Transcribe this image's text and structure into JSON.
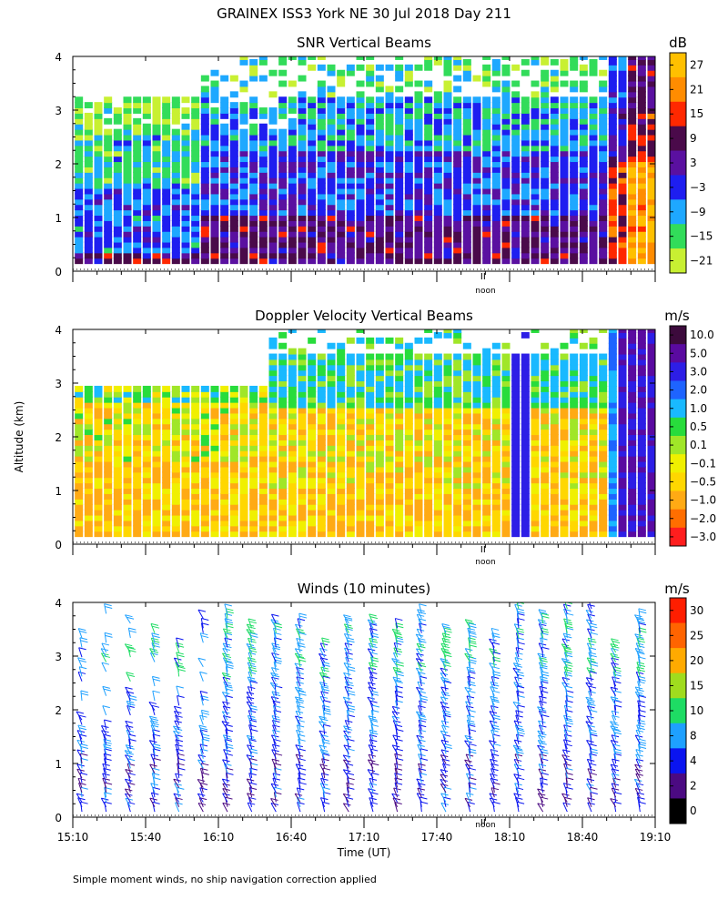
{
  "figure": {
    "title": "GRAINEX ISS3 York NE  30 Jul 2018 Day 211",
    "ylabel": "Altitude (km)",
    "xlabel": "Time (UT)",
    "footnote": "Simple moment winds, no ship navigation correction applied"
  },
  "chart_data": [
    {
      "type": "heatmap",
      "title": "SNR Vertical Beams",
      "xlabel": "Time (UT)",
      "ylabel": "Altitude (km)",
      "xlim": [
        "15:10",
        "19:10"
      ],
      "ylim": [
        0,
        4
      ],
      "yticks": [
        "0",
        "1",
        "2",
        "3",
        "4"
      ],
      "noon_label": "noon",
      "colorbar": {
        "unit": "dB",
        "labels": [
          "27",
          "21",
          "15",
          "9",
          "3",
          "−3",
          "−9",
          "−15",
          "−21"
        ],
        "colors": [
          "#ffc000",
          "#ff8c00",
          "#ff2800",
          "#4a0a4a",
          "#5a10a0",
          "#1e1ef0",
          "#1ea8ff",
          "#32dc5a",
          "#c8f032"
        ]
      },
      "bands_dB_by_hour": {
        "15:10-16:00": {
          "surface_to_0.3km": 6,
          "0.3_to_1.5km": -6,
          "1.5_to_2.5km": -12,
          "2.5_to_3.2km": -18
        },
        "16:00-18:50": {
          "surface_to_1km": 6,
          "1_to_2.2km": -3,
          "2.2_to_3.2km": -9,
          "3.2_to_4km": -15
        },
        "18:50-19:10": {
          "surface_to_2km": 24,
          "2_to_3km": 12,
          "3_to_4km": 6
        }
      }
    },
    {
      "type": "heatmap",
      "title": "Doppler Velocity Vertical Beams",
      "xlabel": "Time (UT)",
      "ylabel": "Altitude (km)",
      "xlim": [
        "15:10",
        "19:10"
      ],
      "ylim": [
        0,
        4
      ],
      "yticks": [
        "0",
        "1",
        "2",
        "3",
        "4"
      ],
      "noon_label": "noon",
      "colorbar": {
        "unit": "m/s",
        "labels": [
          "10.0",
          "5.0",
          "3.0",
          "2.0",
          "1.0",
          "0.5",
          "0.1",
          "−0.1",
          "−0.5",
          "−1.0",
          "−2.0",
          "−3.0"
        ],
        "colors": [
          "#3c0a3c",
          "#5a0aa0",
          "#2d1ee6",
          "#1e64ff",
          "#19b9ff",
          "#28dc3c",
          "#a0e628",
          "#f0f000",
          "#ffd700",
          "#ffaa14",
          "#ff6e00",
          "#ff1e1e"
        ]
      },
      "bands_ms_by_hour": {
        "15:10-16:30": {
          "surface_to_1.5km": -0.7,
          "1.5_to_2.6km": -0.3,
          "2.6_to_2.9km": 0.3
        },
        "16:30-18:50": {
          "surface_to_1km": -0.7,
          "1_to_2.5km": -0.5,
          "2.5_to_3.5km": 0.7
        },
        "18:50-19:10": {
          "surface_to_4km": 4.0
        }
      }
    },
    {
      "type": "barbs",
      "title": "Winds (10 minutes)",
      "xlabel": "Time (UT)",
      "ylabel": "Altitude (km)",
      "xlim": [
        "15:10",
        "19:10"
      ],
      "ylim": [
        0,
        4
      ],
      "yticks": [
        "0",
        "1",
        "2",
        "3",
        "4"
      ],
      "xticks": [
        "15:10",
        "15:40",
        "16:10",
        "16:40",
        "17:10",
        "17:40",
        "18:10",
        "18:40",
        "19:10"
      ],
      "noon_label": "noon",
      "colorbar": {
        "unit": "m/s",
        "labels": [
          "30",
          "25",
          "20",
          "15",
          "10",
          "8",
          "4",
          "2",
          "0"
        ],
        "colors": [
          "#ff1e00",
          "#ff6400",
          "#ffaa00",
          "#a0dc1e",
          "#1edc64",
          "#1ea0ff",
          "#0a14f0",
          "#4b0a82",
          "#000000"
        ]
      },
      "profile_times": [
        "15:10",
        "15:20",
        "15:30",
        "15:40",
        "15:50",
        "16:00",
        "16:10",
        "16:20",
        "16:30",
        "16:40",
        "16:50",
        "17:00",
        "17:10",
        "17:20",
        "17:30",
        "17:40",
        "17:50",
        "18:00",
        "18:10",
        "18:20",
        "18:30",
        "18:40",
        "18:50",
        "19:00"
      ],
      "typical_speed_ms": {
        "0_to_1km": 4,
        "1_to_2.5km": 6,
        "2.5_to_4km": 8
      }
    }
  ]
}
